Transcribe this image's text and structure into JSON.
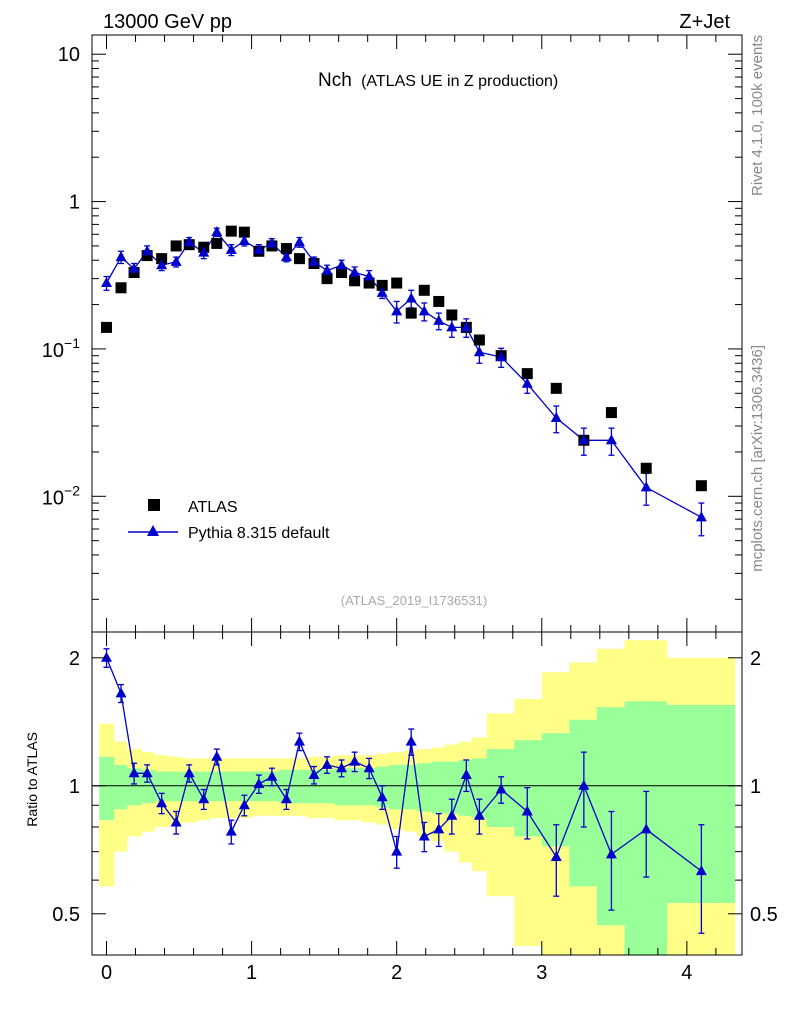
{
  "header": {
    "left": "13000 GeV pp",
    "right": "Z+Jet"
  },
  "side_label_top": "Rivet 4.1.0,  100k events",
  "side_label_bottom": "mcplots.cern.ch [arXiv:1306.3436]",
  "colors": {
    "data": "#000000",
    "mc": "#0000cc",
    "band_inner": "#99ff99",
    "band_outer": "#ffff88"
  },
  "chart_data": [
    {
      "type": "scatter",
      "panel": "main",
      "title": "Nch",
      "subtitle": "(ATLAS UE in Z production)",
      "analysis_label": "(ATLAS_2019_I1736531)",
      "yscale": "log",
      "xlim": [
        -0.1,
        4.38
      ],
      "ylim": [
        0.0012,
        13.5
      ],
      "x_ticks": [
        0,
        1,
        2,
        3,
        4
      ],
      "y_ticks": [
        {
          "value": 10,
          "label": "10"
        },
        {
          "value": 1,
          "label": "1"
        },
        {
          "value": 0.1,
          "base": "10",
          "exp": "−1"
        },
        {
          "value": 0.01,
          "base": "10",
          "exp": "−2"
        }
      ],
      "legend": {
        "placement": "lower-left",
        "entries": [
          "ATLAS",
          "Pythia 8.315 default"
        ]
      },
      "series": [
        {
          "name": "ATLAS",
          "marker": "square",
          "x": [
            0.0,
            0.1,
            0.19,
            0.28,
            0.38,
            0.48,
            0.57,
            0.67,
            0.76,
            0.86,
            0.95,
            1.05,
            1.14,
            1.24,
            1.33,
            1.43,
            1.52,
            1.62,
            1.71,
            1.81,
            1.9,
            2.0,
            2.1,
            2.19,
            2.29,
            2.38,
            2.48,
            2.57,
            2.72,
            2.9,
            3.1,
            3.29,
            3.48,
            3.72,
            4.1
          ],
          "y": [
            0.14,
            0.26,
            0.33,
            0.43,
            0.41,
            0.5,
            0.51,
            0.49,
            0.52,
            0.63,
            0.62,
            0.46,
            0.5,
            0.48,
            0.41,
            0.38,
            0.3,
            0.33,
            0.29,
            0.28,
            0.27,
            0.28,
            0.175,
            0.25,
            0.21,
            0.17,
            0.14,
            0.115,
            0.09,
            0.068,
            0.054,
            0.024,
            0.037,
            0.0155,
            0.0118
          ]
        },
        {
          "name": "Pythia 8.315 default",
          "marker": "triangle",
          "x": [
            0.0,
            0.1,
            0.19,
            0.28,
            0.38,
            0.48,
            0.57,
            0.67,
            0.76,
            0.86,
            0.95,
            1.05,
            1.14,
            1.24,
            1.33,
            1.43,
            1.52,
            1.62,
            1.71,
            1.81,
            1.9,
            2.0,
            2.1,
            2.19,
            2.29,
            2.38,
            2.48,
            2.57,
            2.72,
            2.9,
            3.1,
            3.29,
            3.48,
            3.72,
            4.1
          ],
          "y": [
            0.28,
            0.42,
            0.35,
            0.46,
            0.37,
            0.39,
            0.53,
            0.45,
            0.62,
            0.47,
            0.54,
            0.47,
            0.52,
            0.42,
            0.53,
            0.39,
            0.34,
            0.37,
            0.33,
            0.31,
            0.24,
            0.18,
            0.22,
            0.18,
            0.155,
            0.14,
            0.14,
            0.095,
            0.088,
            0.058,
            0.034,
            0.024,
            0.024,
            0.0115,
            0.0072
          ],
          "err": [
            0.03,
            0.04,
            0.03,
            0.04,
            0.03,
            0.03,
            0.04,
            0.04,
            0.04,
            0.04,
            0.04,
            0.04,
            0.04,
            0.03,
            0.04,
            0.03,
            0.03,
            0.03,
            0.03,
            0.03,
            0.02,
            0.03,
            0.03,
            0.025,
            0.02,
            0.02,
            0.02,
            0.015,
            0.013,
            0.008,
            0.007,
            0.005,
            0.005,
            0.0028,
            0.0018
          ]
        }
      ]
    },
    {
      "type": "scatter",
      "panel": "ratio",
      "ylabel": "Ratio to ATLAS",
      "yscale": "log",
      "xlim": [
        -0.1,
        4.38
      ],
      "ylim": [
        0.4,
        2.3
      ],
      "x_ticks": [
        0,
        1,
        2,
        3,
        4
      ],
      "y_ticks": [
        {
          "value": 2,
          "label": "2"
        },
        {
          "value": 1,
          "label": "1"
        },
        {
          "value": 0.5,
          "label": "0.5"
        }
      ],
      "bands": {
        "bin_edges": [
          -0.05,
          0.05,
          0.14,
          0.24,
          0.33,
          0.43,
          0.52,
          0.62,
          0.71,
          0.81,
          0.9,
          1.0,
          1.1,
          1.19,
          1.29,
          1.38,
          1.48,
          1.57,
          1.67,
          1.76,
          1.86,
          1.95,
          2.05,
          2.14,
          2.24,
          2.33,
          2.43,
          2.52,
          2.62,
          2.81,
          3.0,
          3.19,
          3.38,
          3.57,
          3.86,
          4.33
        ],
        "inner_lo": [
          0.83,
          0.88,
          0.9,
          0.91,
          0.92,
          0.92,
          0.92,
          0.92,
          0.92,
          0.92,
          0.92,
          0.92,
          0.92,
          0.91,
          0.91,
          0.91,
          0.91,
          0.9,
          0.9,
          0.9,
          0.89,
          0.88,
          0.88,
          0.87,
          0.86,
          0.86,
          0.85,
          0.84,
          0.8,
          0.76,
          0.72,
          0.58,
          0.47,
          0.38,
          0.53
        ],
        "inner_hi": [
          1.17,
          1.12,
          1.1,
          1.09,
          1.08,
          1.08,
          1.08,
          1.08,
          1.08,
          1.08,
          1.08,
          1.08,
          1.08,
          1.09,
          1.09,
          1.09,
          1.09,
          1.1,
          1.1,
          1.1,
          1.11,
          1.12,
          1.12,
          1.13,
          1.14,
          1.14,
          1.15,
          1.16,
          1.22,
          1.28,
          1.33,
          1.43,
          1.53,
          1.58,
          1.55
        ],
        "outer_lo": [
          0.58,
          0.7,
          0.76,
          0.78,
          0.8,
          0.81,
          0.82,
          0.83,
          0.84,
          0.84,
          0.84,
          0.85,
          0.85,
          0.85,
          0.85,
          0.84,
          0.84,
          0.83,
          0.83,
          0.82,
          0.81,
          0.79,
          0.78,
          0.76,
          0.74,
          0.7,
          0.66,
          0.63,
          0.55,
          0.42,
          0.4,
          0.38,
          0.36,
          0.32,
          0.38
        ],
        "outer_hi": [
          1.4,
          1.27,
          1.22,
          1.2,
          1.18,
          1.17,
          1.16,
          1.16,
          1.16,
          1.16,
          1.16,
          1.16,
          1.16,
          1.16,
          1.16,
          1.17,
          1.17,
          1.18,
          1.18,
          1.18,
          1.19,
          1.2,
          1.21,
          1.22,
          1.23,
          1.25,
          1.27,
          1.3,
          1.48,
          1.6,
          1.85,
          1.95,
          2.1,
          2.2,
          2.0
        ]
      },
      "series": [
        {
          "name": "Pythia 8.315 default / ATLAS",
          "marker": "triangle",
          "x": [
            0.0,
            0.1,
            0.19,
            0.28,
            0.38,
            0.48,
            0.57,
            0.67,
            0.76,
            0.86,
            0.95,
            1.05,
            1.14,
            1.24,
            1.33,
            1.43,
            1.52,
            1.62,
            1.71,
            1.81,
            1.9,
            2.0,
            2.1,
            2.19,
            2.29,
            2.38,
            2.48,
            2.57,
            2.72,
            2.9,
            3.1,
            3.29,
            3.48,
            3.72,
            4.1
          ],
          "y": [
            2.0,
            1.65,
            1.07,
            1.07,
            0.91,
            0.82,
            1.07,
            0.93,
            1.17,
            0.78,
            0.9,
            1.01,
            1.05,
            0.93,
            1.27,
            1.06,
            1.12,
            1.1,
            1.14,
            1.1,
            0.94,
            0.7,
            1.27,
            0.76,
            0.79,
            0.85,
            1.06,
            0.85,
            0.98,
            0.87,
            0.68,
            1.0,
            0.69,
            0.79,
            0.63
          ],
          "err": [
            0.1,
            0.08,
            0.06,
            0.05,
            0.05,
            0.05,
            0.05,
            0.05,
            0.05,
            0.05,
            0.05,
            0.05,
            0.05,
            0.05,
            0.06,
            0.05,
            0.05,
            0.05,
            0.06,
            0.06,
            0.06,
            0.06,
            0.09,
            0.06,
            0.07,
            0.08,
            0.09,
            0.08,
            0.07,
            0.12,
            0.13,
            0.2,
            0.18,
            0.18,
            0.18
          ]
        }
      ]
    }
  ]
}
